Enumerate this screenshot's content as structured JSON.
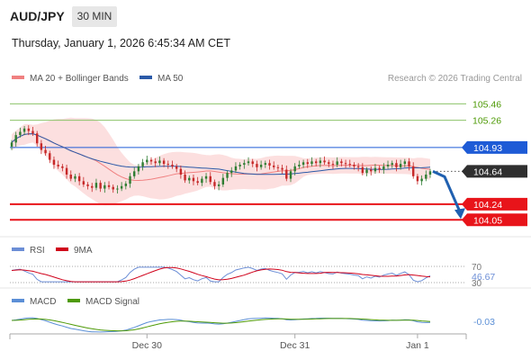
{
  "header": {
    "symbol": "AUD/JPY",
    "timeframe": "30 MIN",
    "datetime": "Thursday, January 1, 2026 6:45:34 AM CET"
  },
  "legend": {
    "ma20": "MA 20 + Bollinger Bands",
    "ma50": "MA 50",
    "credit": "Research © 2026 Trading Central",
    "rsi": "RSI",
    "rsi_ma": "9MA",
    "macd": "MACD",
    "macd_signal": "MACD Signal"
  },
  "colors": {
    "ma20": "#f08080",
    "ma50": "#2b5aa8",
    "band_fill": "#fbd9d9",
    "bull": "#2e7d32",
    "bear": "#c62828",
    "resistance_line": "#8cc26a",
    "resistance_text": "#4e9a06",
    "pivot": "#1e5bd6",
    "support": "#e8141a",
    "last_price_bg": "#2f2f2f",
    "arrow": "#2060b0",
    "rsi_line": "#6c8ed6",
    "rsi_ma": "#d0021b",
    "macd_line": "#5b8fd6",
    "macd_signal": "#4e9a06"
  },
  "chart_data": [
    {
      "type": "candlestick",
      "title": "AUD/JPY",
      "ylim": [
        103.9,
        105.65
      ],
      "levels": [
        {
          "value": 105.46,
          "label": "105.46",
          "kind": "resistance"
        },
        {
          "value": 105.26,
          "label": "105.26",
          "kind": "resistance"
        },
        {
          "value": 104.93,
          "label": "104.93",
          "kind": "pivot"
        },
        {
          "value": 104.24,
          "label": "104.24",
          "kind": "support"
        },
        {
          "value": 104.05,
          "label": "104.05",
          "kind": "support"
        }
      ],
      "last_price": 104.64,
      "last_price_label": "104.64",
      "forecast": [
        104.64,
        104.05
      ],
      "close": [
        104.99,
        105.08,
        105.12,
        105.16,
        105.13,
        105.1,
        104.98,
        104.9,
        104.86,
        104.78,
        104.72,
        104.7,
        104.68,
        104.6,
        104.55,
        104.58,
        104.52,
        104.48,
        104.46,
        104.44,
        104.5,
        104.43,
        104.47,
        104.45,
        104.42,
        104.43,
        104.46,
        104.49,
        104.58,
        104.64,
        104.7,
        104.75,
        104.78,
        104.76,
        104.74,
        104.77,
        104.73,
        104.72,
        104.7,
        104.67,
        104.6,
        104.53,
        104.56,
        104.52,
        104.5,
        104.55,
        104.58,
        104.51,
        104.46,
        104.48,
        104.56,
        104.62,
        104.65,
        104.7,
        104.72,
        104.74,
        104.76,
        104.73,
        104.69,
        104.72,
        104.74,
        104.71,
        104.69,
        104.68,
        104.66,
        104.55,
        104.64,
        104.7,
        104.72,
        104.75,
        104.73,
        104.76,
        104.74,
        104.77,
        104.75,
        104.73,
        104.72,
        104.76,
        104.74,
        104.73,
        104.72,
        104.7,
        104.69,
        104.62,
        104.66,
        104.64,
        104.68,
        104.66,
        104.7,
        104.72,
        104.74,
        104.69,
        104.73,
        104.76,
        104.7,
        104.58,
        104.52,
        104.55,
        104.6,
        104.64
      ],
      "x_ticks": [
        {
          "index": 32,
          "label": "Dec 30"
        },
        {
          "index": 67,
          "label": "Dec 31"
        },
        {
          "index": 96,
          "label": "Jan 1"
        }
      ]
    },
    {
      "type": "line",
      "title": "RSI",
      "ylim": [
        30,
        70
      ],
      "tick_labels": [
        "70",
        "30"
      ],
      "last_label": "46.67",
      "series": [
        {
          "name": "RSI"
        },
        {
          "name": "9MA"
        }
      ]
    },
    {
      "type": "line",
      "title": "MACD",
      "last_label": "-0.03",
      "series": [
        {
          "name": "MACD"
        },
        {
          "name": "MACD Signal"
        }
      ]
    }
  ]
}
